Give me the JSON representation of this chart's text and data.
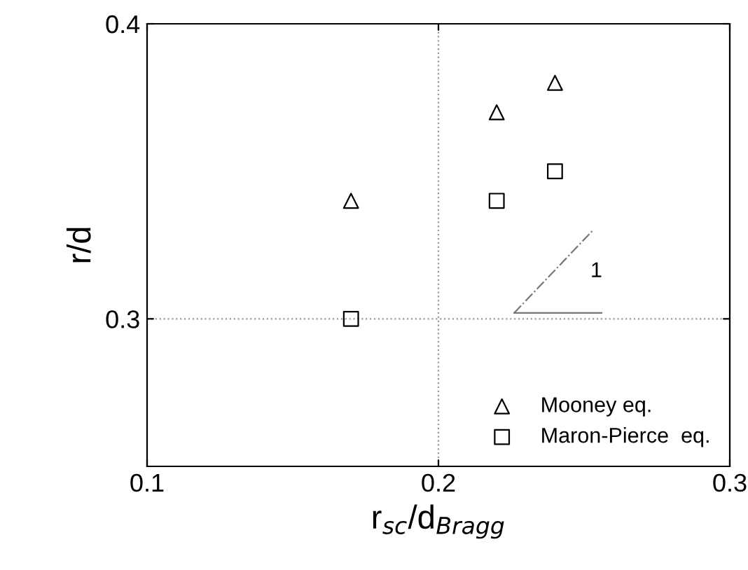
{
  "chart_data": {
    "type": "scatter",
    "xlabel": "r$_{sc}$/d$_{Bragg}$",
    "ylabel": "r/d",
    "x": [
      0.17,
      0.22,
      0.24
    ],
    "series": [
      {
        "name": "Mooney eq.",
        "color": "#000000",
        "values": [
          0.34,
          0.37,
          0.38
        ],
        "marker": "triangle"
      },
      {
        "name": "Maron-Pierce  eq.",
        "color": "#000000",
        "values": [
          0.3,
          0.34,
          0.35
        ],
        "marker": "square"
      },
      {
        "type": "line",
        "color": "#777777",
        "x": [
          0.226,
          0.253
        ],
        "values": [
          0.302,
          0.33
        ],
        "line_style": "dashed",
        "marker": "none"
      },
      {
        "type": "line",
        "color": "#777777",
        "x": [
          0.226,
          0.256
        ],
        "values": [
          0.302,
          0.302
        ],
        "line_style": "solid",
        "marker": "none"
      }
    ],
    "xlim": [
      0.1,
      0.3
    ],
    "xticks": [
      0.1,
      0.2,
      0.3
    ],
    "ylim": [
      0.25,
      0.4
    ],
    "yticks": [
      0.3,
      0.4
    ],
    "ref_lines": [
      {
        "axis": "x",
        "value": 0.2,
        "color": "#999999",
        "line_style": "dotted"
      },
      {
        "axis": "y",
        "value": 0.3,
        "color": "#999999",
        "line_style": "dotted"
      }
    ],
    "annotations": [
      {
        "text": "1",
        "x": 0.2395,
        "y": 0.316
      }
    ],
    "legend": "bottom right",
    "grid": false
  }
}
